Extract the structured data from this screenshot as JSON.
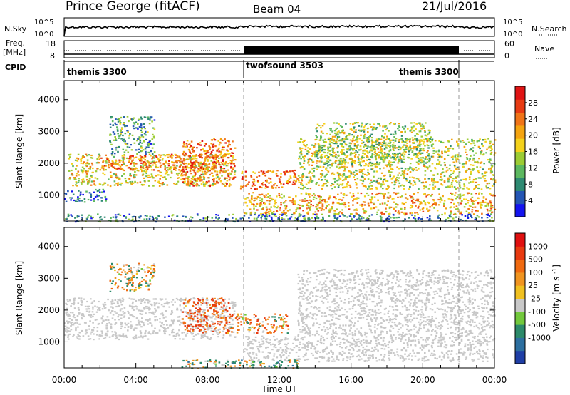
{
  "header": {
    "station": "Prince George (fitACF)",
    "beam": "Beam 04",
    "date": "21/Jul/2016"
  },
  "top_panels": {
    "nsky": {
      "label": "N.Sky",
      "ticks": [
        "10^5",
        "10^0"
      ],
      "right_ticks": [
        "10^5",
        "10^0"
      ],
      "right_label": "N.Search"
    },
    "freq": {
      "label_lines": [
        "Freq.",
        "[MHz]"
      ],
      "ticks": [
        "18",
        "8"
      ],
      "right_ticks": [
        "60",
        "0"
      ],
      "right_label": "Nave"
    },
    "cpid": {
      "label": "CPID",
      "segments": [
        {
          "name": "themis 3300",
          "start_hour": 0,
          "end_hour": 10
        },
        {
          "name": "twofsound 3503",
          "start_hour": 10,
          "end_hour": 22
        },
        {
          "name": "themis 3300",
          "start_hour": 22,
          "end_hour": 24
        }
      ]
    }
  },
  "chart_data": [
    {
      "type": "heatmap",
      "panel": "power",
      "ylabel": "Slant Range [km]",
      "x_range_hours": [
        0,
        24
      ],
      "ylim": [
        180,
        4600
      ],
      "yticks": [
        1000,
        2000,
        3000,
        4000
      ],
      "colorbar": {
        "label": "Power [dB]",
        "ticks": [
          28,
          24,
          20,
          16,
          12,
          8,
          4
        ],
        "range": [
          0,
          32
        ],
        "colors": [
          "#1414f0",
          "#2456b4",
          "#2e8a72",
          "#5cb860",
          "#9ccc34",
          "#f4d21c",
          "#f4a410",
          "#f07418",
          "#e83c14",
          "#e01414"
        ]
      },
      "scatter_regions": [
        {
          "from_hour": 0.0,
          "to_hour": 2.3,
          "range_from": 800,
          "range_to": 1200,
          "level": 6
        },
        {
          "from_hour": 0.2,
          "to_hour": 9.5,
          "range_from": 1300,
          "range_to": 2300,
          "level": 18
        },
        {
          "from_hour": 2.0,
          "to_hour": 8.5,
          "range_from": 1800,
          "range_to": 2300,
          "level": 24
        },
        {
          "from_hour": 6.5,
          "to_hour": 9.5,
          "range_from": 1300,
          "range_to": 2800,
          "level": 24
        },
        {
          "from_hour": 2.5,
          "to_hour": 5.0,
          "range_from": 2300,
          "range_to": 3500,
          "level": 10
        },
        {
          "from_hour": 9.8,
          "to_hour": 13.0,
          "range_from": 1200,
          "range_to": 1800,
          "level": 24
        },
        {
          "from_hour": 10.0,
          "to_hour": 24.0,
          "range_from": 400,
          "range_to": 1100,
          "level": 20
        },
        {
          "from_hour": 13.0,
          "to_hour": 24.0,
          "range_from": 1200,
          "range_to": 2800,
          "level": 16
        },
        {
          "from_hour": 14.0,
          "to_hour": 20.5,
          "range_from": 2000,
          "range_to": 3300,
          "level": 14
        },
        {
          "from_hour": 0.0,
          "to_hour": 24.0,
          "range_from": 180,
          "range_to": 420,
          "level": 8
        }
      ]
    },
    {
      "type": "heatmap",
      "panel": "velocity",
      "ylabel": "Slant Range [km]",
      "xlabel": "Time UT",
      "x_range_hours": [
        0,
        24
      ],
      "xticks": [
        "00:00",
        "04:00",
        "08:00",
        "12:00",
        "16:00",
        "20:00",
        "00:00"
      ],
      "ylim": [
        180,
        4600
      ],
      "yticks": [
        1000,
        2000,
        3000,
        4000
      ],
      "colorbar": {
        "label": "Velocity [m s^-1]",
        "ticks": [
          "1000",
          "500",
          "100",
          "25",
          "-25",
          "-100",
          "-500",
          "-1000"
        ],
        "colors": [
          "#1f3fa6",
          "#2d6fa0",
          "#2c8a6a",
          "#72c83c",
          "#c8c8c8",
          "#f0c020",
          "#f09420",
          "#f06a10",
          "#e83a10",
          "#e01010"
        ]
      },
      "scatter_regions": [
        {
          "from_hour": 0.0,
          "to_hour": 9.5,
          "range_from": 1100,
          "range_to": 2400,
          "level": 0
        },
        {
          "from_hour": 6.5,
          "to_hour": 9.2,
          "range_from": 1300,
          "range_to": 2400,
          "level": -300
        },
        {
          "from_hour": 9.2,
          "to_hour": 12.5,
          "range_from": 1300,
          "range_to": 1900,
          "level": -150
        },
        {
          "from_hour": 10.0,
          "to_hour": 24.0,
          "range_from": 400,
          "range_to": 1200,
          "level": 0
        },
        {
          "from_hour": 13.0,
          "to_hour": 24.0,
          "range_from": 1200,
          "range_to": 3300,
          "level": 0
        },
        {
          "from_hour": 2.5,
          "to_hour": 5.0,
          "range_from": 2600,
          "range_to": 3500,
          "level": -60
        },
        {
          "from_hour": 6.5,
          "to_hour": 13.0,
          "range_from": 180,
          "range_to": 450,
          "level": 80
        }
      ]
    }
  ]
}
